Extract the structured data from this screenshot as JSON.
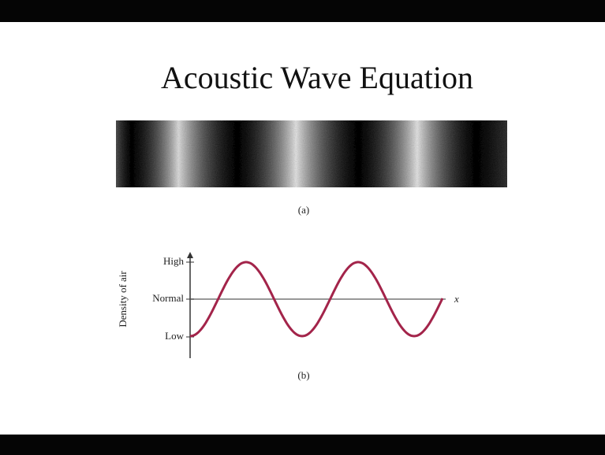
{
  "title": "Acoustic Wave Equation",
  "figure_a": {
    "caption": "(a)"
  },
  "figure_b": {
    "caption": "(b)",
    "y_axis_label": "Density of air",
    "x_axis_label": "x",
    "levels": {
      "high": "High",
      "normal": "Normal",
      "low": "Low"
    }
  }
}
